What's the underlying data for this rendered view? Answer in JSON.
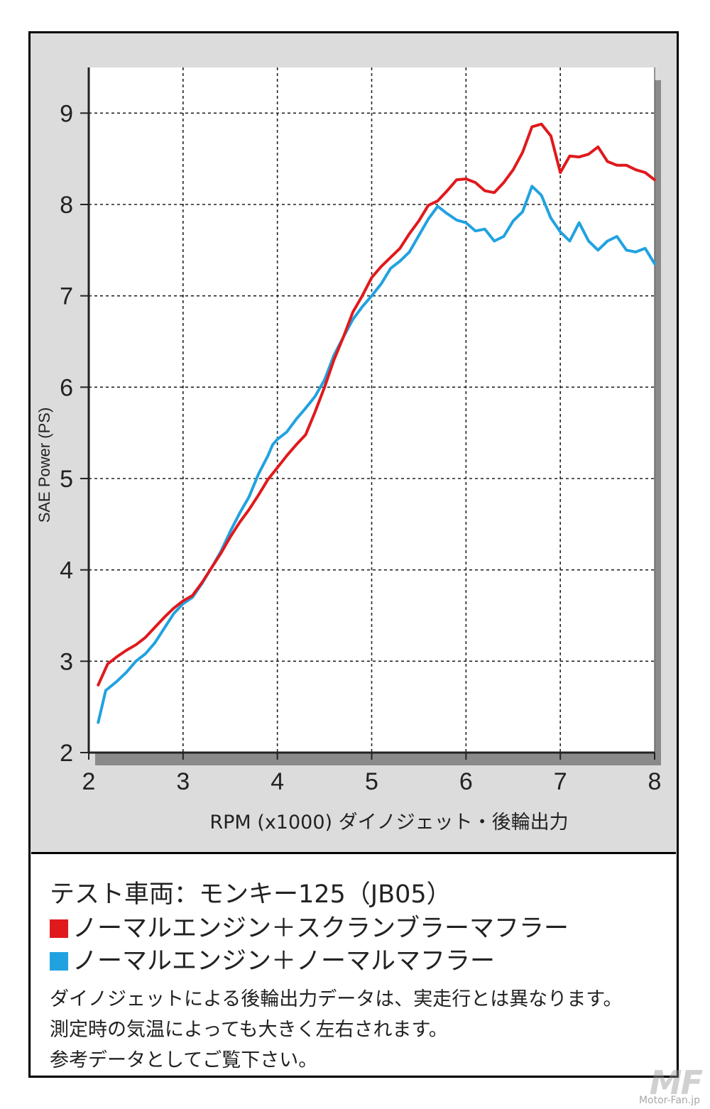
{
  "chart_data": {
    "type": "line",
    "xlabel": "RPM (x1000) ダイノジェット・後輪出力",
    "ylabel": "SAE Power (PS)",
    "xlim": [
      2,
      8
    ],
    "ylim": [
      2,
      9.5
    ],
    "xticks": [
      "2",
      "3",
      "4",
      "5",
      "6",
      "7",
      "8"
    ],
    "yticks": [
      "2",
      "3",
      "4",
      "5",
      "6",
      "7",
      "8",
      "9"
    ],
    "grid": true,
    "series": [
      {
        "name": "ノーマルエンジン＋スクランブラーマフラー",
        "color": "#e0191c",
        "points": [
          [
            2.1,
            2.74
          ],
          [
            2.2,
            2.97
          ],
          [
            2.3,
            3.05
          ],
          [
            2.4,
            3.12
          ],
          [
            2.5,
            3.18
          ],
          [
            2.6,
            3.26
          ],
          [
            2.7,
            3.37
          ],
          [
            2.8,
            3.48
          ],
          [
            2.9,
            3.58
          ],
          [
            3.0,
            3.66
          ],
          [
            3.1,
            3.72
          ],
          [
            3.2,
            3.86
          ],
          [
            3.3,
            4.02
          ],
          [
            3.4,
            4.18
          ],
          [
            3.5,
            4.36
          ],
          [
            3.6,
            4.52
          ],
          [
            3.7,
            4.66
          ],
          [
            3.8,
            4.82
          ],
          [
            3.9,
            4.99
          ],
          [
            4.0,
            5.12
          ],
          [
            4.1,
            5.25
          ],
          [
            4.2,
            5.37
          ],
          [
            4.3,
            5.48
          ],
          [
            4.4,
            5.73
          ],
          [
            4.5,
            6.0
          ],
          [
            4.6,
            6.3
          ],
          [
            4.7,
            6.55
          ],
          [
            4.8,
            6.82
          ],
          [
            4.9,
            7.0
          ],
          [
            5.0,
            7.2
          ],
          [
            5.1,
            7.32
          ],
          [
            5.2,
            7.42
          ],
          [
            5.3,
            7.52
          ],
          [
            5.4,
            7.68
          ],
          [
            5.5,
            7.82
          ],
          [
            5.6,
            7.99
          ],
          [
            5.7,
            8.04
          ],
          [
            5.8,
            8.15
          ],
          [
            5.9,
            8.27
          ],
          [
            6.0,
            8.28
          ],
          [
            6.1,
            8.24
          ],
          [
            6.2,
            8.15
          ],
          [
            6.3,
            8.13
          ],
          [
            6.4,
            8.24
          ],
          [
            6.5,
            8.38
          ],
          [
            6.6,
            8.57
          ],
          [
            6.7,
            8.85
          ],
          [
            6.8,
            8.88
          ],
          [
            6.9,
            8.75
          ],
          [
            7.0,
            8.35
          ],
          [
            7.1,
            8.53
          ],
          [
            7.2,
            8.52
          ],
          [
            7.3,
            8.55
          ],
          [
            7.4,
            8.63
          ],
          [
            7.5,
            8.47
          ],
          [
            7.6,
            8.43
          ],
          [
            7.7,
            8.43
          ],
          [
            7.8,
            8.38
          ],
          [
            7.9,
            8.35
          ],
          [
            8.0,
            8.27
          ]
        ]
      },
      {
        "name": "ノーマルエンジン＋ノーマルマフラー",
        "color": "#21a2e0",
        "points": [
          [
            2.1,
            2.33
          ],
          [
            2.18,
            2.68
          ],
          [
            2.3,
            2.78
          ],
          [
            2.4,
            2.88
          ],
          [
            2.5,
            3.0
          ],
          [
            2.6,
            3.08
          ],
          [
            2.7,
            3.2
          ],
          [
            2.8,
            3.36
          ],
          [
            2.9,
            3.52
          ],
          [
            3.0,
            3.63
          ],
          [
            3.1,
            3.7
          ],
          [
            3.2,
            3.85
          ],
          [
            3.3,
            4.02
          ],
          [
            3.4,
            4.2
          ],
          [
            3.5,
            4.42
          ],
          [
            3.6,
            4.62
          ],
          [
            3.7,
            4.8
          ],
          [
            3.8,
            5.05
          ],
          [
            3.9,
            5.25
          ],
          [
            3.95,
            5.37
          ],
          [
            4.0,
            5.43
          ],
          [
            4.1,
            5.51
          ],
          [
            4.2,
            5.65
          ],
          [
            4.3,
            5.77
          ],
          [
            4.4,
            5.9
          ],
          [
            4.5,
            6.08
          ],
          [
            4.6,
            6.35
          ],
          [
            4.7,
            6.55
          ],
          [
            4.8,
            6.74
          ],
          [
            4.9,
            6.88
          ],
          [
            5.0,
            7.0
          ],
          [
            5.1,
            7.13
          ],
          [
            5.2,
            7.3
          ],
          [
            5.3,
            7.38
          ],
          [
            5.4,
            7.48
          ],
          [
            5.5,
            7.66
          ],
          [
            5.6,
            7.84
          ],
          [
            5.7,
            7.98
          ],
          [
            5.8,
            7.9
          ],
          [
            5.9,
            7.83
          ],
          [
            6.0,
            7.8
          ],
          [
            6.1,
            7.71
          ],
          [
            6.2,
            7.73
          ],
          [
            6.3,
            7.6
          ],
          [
            6.4,
            7.65
          ],
          [
            6.5,
            7.82
          ],
          [
            6.6,
            7.92
          ],
          [
            6.7,
            8.2
          ],
          [
            6.8,
            8.1
          ],
          [
            6.9,
            7.85
          ],
          [
            7.0,
            7.7
          ],
          [
            7.1,
            7.6
          ],
          [
            7.2,
            7.8
          ],
          [
            7.3,
            7.6
          ],
          [
            7.4,
            7.5
          ],
          [
            7.5,
            7.6
          ],
          [
            7.6,
            7.65
          ],
          [
            7.7,
            7.5
          ],
          [
            7.8,
            7.48
          ],
          [
            7.9,
            7.52
          ],
          [
            8.0,
            7.35
          ]
        ]
      }
    ]
  },
  "info": {
    "test_vehicle": "テスト車両：モンキー125（JB05）",
    "legend_red": "ノーマルエンジン＋スクランブラーマフラー",
    "legend_blue": "ノーマルエンジン＋ノーマルマフラー",
    "note_1": "ダイノジェットによる後輪出力データは、実走行とは異なります。",
    "note_2": "測定時の気温によっても大きく左右されます。",
    "note_3": "参考データとしてご覧下さい。"
  },
  "watermark": {
    "logo": "MF",
    "site": "Motor-Fan.jp"
  }
}
